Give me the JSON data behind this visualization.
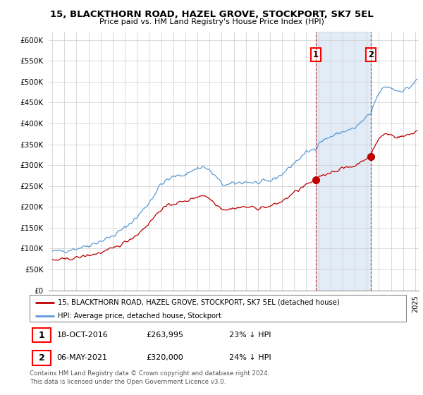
{
  "title1": "15, BLACKTHORN ROAD, HAZEL GROVE, STOCKPORT, SK7 5EL",
  "title2": "Price paid vs. HM Land Registry's House Price Index (HPI)",
  "hpi_color": "#5b9bd5",
  "price_color": "#c00000",
  "hpi_fill_color": "#ddeeff",
  "marker1_date": 2016.8,
  "marker1_price": 263995,
  "marker2_date": 2021.35,
  "marker2_price": 320000,
  "legend_label1": "15, BLACKTHORN ROAD, HAZEL GROVE, STOCKPORT, SK7 5EL (detached house)",
  "legend_label2": "HPI: Average price, detached house, Stockport",
  "sale1_date": "18-OCT-2016",
  "sale1_price": "£263,995",
  "sale1_note": "23% ↓ HPI",
  "sale2_date": "06-MAY-2021",
  "sale2_price": "£320,000",
  "sale2_note": "24% ↓ HPI",
  "footer": "Contains HM Land Registry data © Crown copyright and database right 2024.\nThis data is licensed under the Open Government Licence v3.0.",
  "ytick_labels": [
    "£0",
    "£50K",
    "£100K",
    "£150K",
    "£200K",
    "£250K",
    "£300K",
    "£350K",
    "£400K",
    "£450K",
    "£500K",
    "£550K",
    "£600K"
  ],
  "yticks": [
    0,
    50000,
    100000,
    150000,
    200000,
    250000,
    300000,
    350000,
    400000,
    450000,
    500000,
    550000,
    600000
  ]
}
